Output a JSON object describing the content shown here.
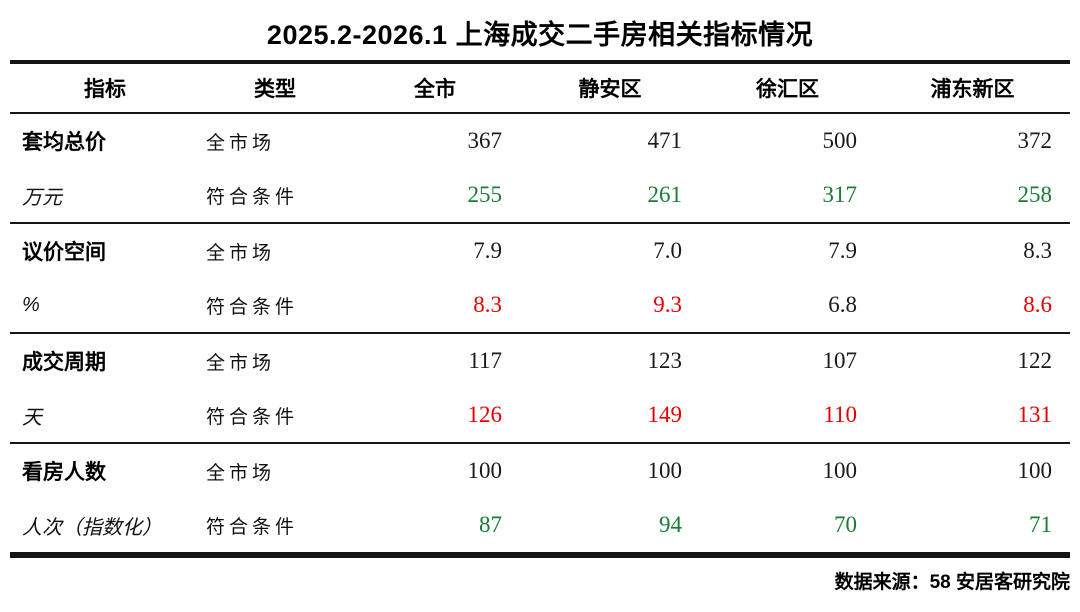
{
  "title": "2025.2-2026.1 上海成交二手房相关指标情况",
  "palette": {
    "black": "#1a1a1a",
    "green": "#177e33",
    "red": "#e60000"
  },
  "table": {
    "headers": [
      "指标",
      "类型",
      "全市",
      "静安区",
      "徐汇区",
      "浦东新区"
    ],
    "groups": [
      {
        "indicator": "套均总价",
        "unit": "万元",
        "rows": [
          {
            "type": "全市场",
            "values": [
              "367",
              "471",
              "500",
              "372"
            ],
            "colors": [
              "black",
              "black",
              "black",
              "black"
            ]
          },
          {
            "type": "符合条件",
            "values": [
              "255",
              "261",
              "317",
              "258"
            ],
            "colors": [
              "green",
              "green",
              "green",
              "green"
            ]
          }
        ]
      },
      {
        "indicator": "议价空间",
        "unit": "%",
        "rows": [
          {
            "type": "全市场",
            "values": [
              "7.9",
              "7.0",
              "7.9",
              "8.3"
            ],
            "colors": [
              "black",
              "black",
              "black",
              "black"
            ]
          },
          {
            "type": "符合条件",
            "values": [
              "8.3",
              "9.3",
              "6.8",
              "8.6"
            ],
            "colors": [
              "red",
              "red",
              "black",
              "red"
            ]
          }
        ]
      },
      {
        "indicator": "成交周期",
        "unit": "天",
        "rows": [
          {
            "type": "全市场",
            "values": [
              "117",
              "123",
              "107",
              "122"
            ],
            "colors": [
              "black",
              "black",
              "black",
              "black"
            ]
          },
          {
            "type": "符合条件",
            "values": [
              "126",
              "149",
              "110",
              "131"
            ],
            "colors": [
              "red",
              "red",
              "red",
              "red"
            ]
          }
        ]
      },
      {
        "indicator": "看房人数",
        "unit": "人次（指数化）",
        "rows": [
          {
            "type": "全市场",
            "values": [
              "100",
              "100",
              "100",
              "100"
            ],
            "colors": [
              "black",
              "black",
              "black",
              "black"
            ]
          },
          {
            "type": "符合条件",
            "values": [
              "87",
              "94",
              "70",
              "71"
            ],
            "colors": [
              "green",
              "green",
              "green",
              "green"
            ]
          }
        ]
      }
    ]
  },
  "footer": {
    "source": "数据来源：58 安居客研究院"
  },
  "chart_data": {
    "type": "table",
    "title": "2025.2-2026.1 上海成交二手房相关指标情况",
    "columns": [
      "指标",
      "类型",
      "全市",
      "静安区",
      "徐汇区",
      "浦东新区"
    ],
    "rows": [
      [
        "套均总价 万元",
        "全市场",
        367,
        471,
        500,
        372
      ],
      [
        "套均总价 万元",
        "符合条件",
        255,
        261,
        317,
        258
      ],
      [
        "议价空间 %",
        "全市场",
        7.9,
        7.0,
        7.9,
        8.3
      ],
      [
        "议价空间 %",
        "符合条件",
        8.3,
        9.3,
        6.8,
        8.6
      ],
      [
        "成交周期 天",
        "全市场",
        117,
        123,
        107,
        122
      ],
      [
        "成交周期 天",
        "符合条件",
        126,
        149,
        110,
        131
      ],
      [
        "看房人数 人次（指数化）",
        "全市场",
        100,
        100,
        100,
        100
      ],
      [
        "看房人数 人次（指数化）",
        "符合条件",
        87,
        94,
        70,
        71
      ]
    ],
    "source": "数据来源：58 安居客研究院"
  }
}
